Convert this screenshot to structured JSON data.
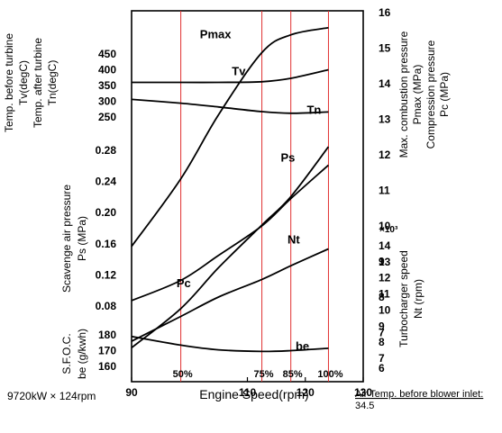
{
  "chart_data": {
    "type": "line",
    "xlabel": "Engine Speed(rpm)",
    "x_ticks": [
      "90",
      "110",
      "120",
      "130"
    ],
    "xlim": [
      90,
      130
    ],
    "engine_spec": "9720kW × 124rpm",
    "air_temp_label": "Air Temp. before blower inlet:",
    "air_temp_value": "34.5",
    "load_lines": [
      {
        "label": "50%",
        "rpm": 98.5
      },
      {
        "label": "75%",
        "rpm": 112.5
      },
      {
        "label": "85%",
        "rpm": 117.5
      },
      {
        "label": "100%",
        "rpm": 124
      }
    ],
    "axes": {
      "temp": {
        "title_lines": [
          "Temp. before turbine",
          "Tv(degC)",
          "Temp. after turbine",
          "Tn(degC)"
        ],
        "ticks": [
          "450",
          "400",
          "350",
          "300",
          "250"
        ],
        "range": [
          250,
          450
        ]
      },
      "ps": {
        "title_lines": [
          "Scavenge air pressure",
          "Ps  (MPa)"
        ],
        "ticks": [
          "0.28",
          "0.24",
          "0.20",
          "0.16",
          "0.12",
          "0.08"
        ],
        "range": [
          0.08,
          0.28
        ]
      },
      "be": {
        "title_lines": [
          "S.F.O.C.",
          "be (g/kwh)"
        ],
        "ticks": [
          "180",
          "170",
          "160"
        ],
        "range": [
          160,
          180
        ]
      },
      "pressure": {
        "title_lines": [
          "Max. combustion pressure",
          "Pmax (MPa)",
          "Compression pressure",
          "Pc (MPa)"
        ],
        "ticks": [
          "16",
          "15",
          "14",
          "13",
          "12",
          "11",
          "10",
          "9",
          "8",
          "7",
          "6"
        ],
        "range": [
          6,
          16
        ]
      },
      "nt": {
        "title_lines": [
          "Turbocharger speed",
          "Nt (rpm)"
        ],
        "multiplier": "×10³",
        "ticks": [
          "14",
          "13",
          "12",
          "11",
          "10",
          "9",
          "8",
          "7"
        ],
        "range": [
          7,
          14
        ]
      }
    },
    "series": [
      {
        "name": "Pmax",
        "axis": "pressure",
        "label_x": 104.5,
        "label_y": 15.35,
        "x": [
          90,
          98.5,
          105,
          112.5,
          117.5,
          124
        ],
        "y": [
          9.4,
          11.3,
          13.1,
          14.85,
          15.35,
          15.55
        ]
      },
      {
        "name": "Tv",
        "axis": "temp",
        "label_x": 108.5,
        "label_y": 395,
        "x": [
          90,
          98.5,
          105,
          112.5,
          117.5,
          124
        ],
        "y": [
          360,
          360,
          360,
          362,
          373,
          400
        ]
      },
      {
        "name": "Tn",
        "axis": "temp",
        "label_x": 121.5,
        "label_y": 272,
        "x": [
          90,
          98.5,
          105,
          112.5,
          117.5,
          124
        ],
        "y": [
          306,
          294,
          282,
          267,
          262,
          266
        ]
      },
      {
        "name": "Pc",
        "axis": "pressure",
        "label_x": 99,
        "label_y": 8.35,
        "x": [
          90,
          98.5,
          105,
          112.5,
          117.5,
          124
        ],
        "y": [
          6.55,
          7.65,
          8.8,
          10.0,
          10.8,
          12.2
        ]
      },
      {
        "name": "Ps",
        "axis": "ps",
        "label_x": 117,
        "label_y": 0.27,
        "x": [
          90,
          98.5,
          105,
          112.5,
          117.5,
          124
        ],
        "y": [
          0.087,
          0.113,
          0.145,
          0.183,
          0.218,
          0.261
        ]
      },
      {
        "name": "Nt",
        "axis": "nt",
        "label_x": 118,
        "label_y": 14.3,
        "x": [
          90,
          98.5,
          105,
          112.5,
          117.5,
          124
        ],
        "y": [
          8.0,
          9.55,
          10.75,
          11.85,
          12.7,
          13.75
        ]
      },
      {
        "name": "be",
        "axis": "be",
        "label_x": 119.5,
        "label_y": 172.5,
        "x": [
          90,
          98.5,
          105,
          112.5,
          117.5,
          124
        ],
        "y": [
          179,
          173.5,
          170.5,
          169.5,
          170,
          171.5
        ]
      }
    ]
  }
}
